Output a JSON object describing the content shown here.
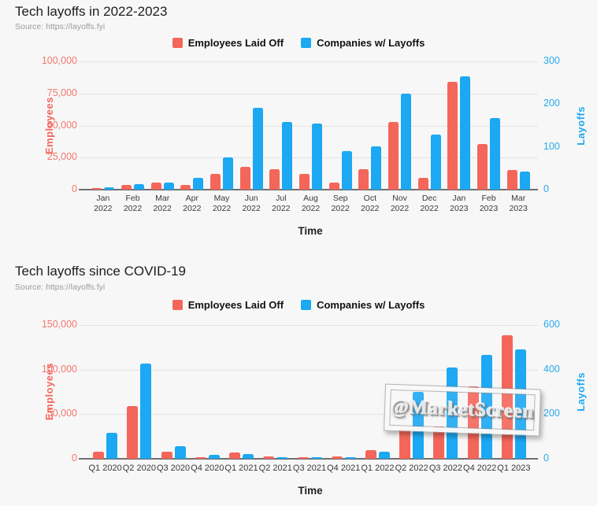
{
  "watermark": {
    "text": "@MarketScreen"
  },
  "chart_data": [
    {
      "type": "bar",
      "title": "Tech layoffs in 2022-2023",
      "source": "Source: https://layoffs.fyi",
      "xlabel": "Time",
      "legend_position": "top",
      "grid": true,
      "categories": [
        "Jan 2022",
        "Feb 2022",
        "Mar 2022",
        "Apr 2022",
        "May 2022",
        "Jun 2022",
        "Jul 2022",
        "Aug 2022",
        "Sep 2022",
        "Oct 2022",
        "Nov 2022",
        "Dec 2022",
        "Jan 2023",
        "Feb 2023",
        "Mar 2023"
      ],
      "series": [
        {
          "name": "Employees Laid Off",
          "axis": "left",
          "color": "#F4665A",
          "values": [
            1000,
            3600,
            5400,
            3600,
            12000,
            17500,
            16000,
            12500,
            5600,
            16200,
            52800,
            9200,
            84000,
            35500,
            15200
          ]
        },
        {
          "name": "Companies w/ Layoffs",
          "axis": "right",
          "color": "#1CA8F2",
          "values": [
            5,
            12,
            17,
            27,
            75,
            192,
            158,
            155,
            91,
            102,
            224,
            128,
            265,
            168,
            42
          ]
        }
      ],
      "left_axis": {
        "label": "Employees",
        "ticks": [
          0,
          25000,
          50000,
          75000,
          100000
        ],
        "max": 100000
      },
      "right_axis": {
        "label": "Layoffs",
        "ticks": [
          0,
          100,
          200,
          300
        ],
        "max": 300
      }
    },
    {
      "type": "bar",
      "title": "Tech layoffs since COVID-19",
      "source": "Source: https://layoffs.fyi",
      "xlabel": "Time",
      "legend_position": "top",
      "grid": true,
      "categories": [
        "Q1 2020",
        "Q2 2020",
        "Q3 2020",
        "Q4 2020",
        "Q1 2021",
        "Q2 2021",
        "Q3 2021",
        "Q4 2021",
        "Q1 2022",
        "Q2 2022",
        "Q3 2022",
        "Q4 2022",
        "Q1 2023"
      ],
      "series": [
        {
          "name": "Employees Laid Off",
          "axis": "left",
          "color": "#F4665A",
          "values": [
            8000,
            59000,
            8200,
            1500,
            7300,
            2400,
            1800,
            2600,
            9400,
            36000,
            36300,
            81500,
            138500
          ]
        },
        {
          "name": "Companies w/ Layoffs",
          "axis": "right",
          "color": "#1CA8F2",
          "values": [
            115,
            428,
            57,
            19,
            21,
            5,
            6,
            5,
            31,
            300,
            410,
            465,
            490
          ]
        }
      ],
      "left_axis": {
        "label": "Employees",
        "ticks": [
          0,
          50000,
          100000,
          150000
        ],
        "max": 150000
      },
      "right_axis": {
        "label": "Layoffs",
        "ticks": [
          0,
          200,
          400,
          600
        ],
        "max": 600
      }
    }
  ]
}
